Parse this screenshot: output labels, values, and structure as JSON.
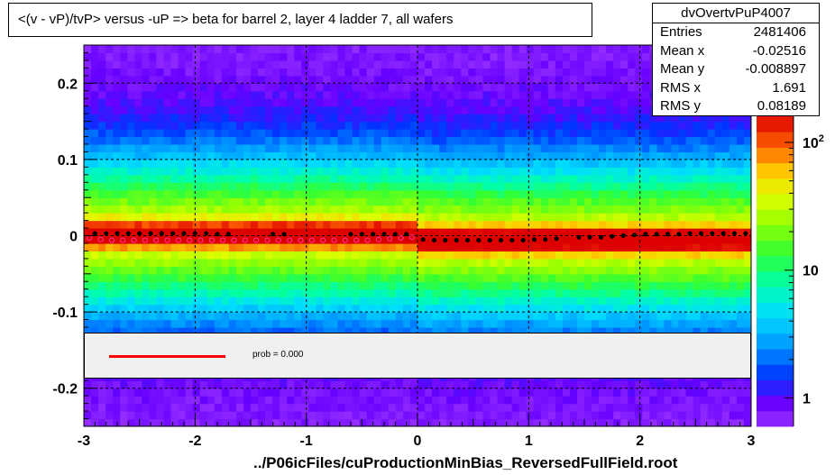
{
  "title": "<(v - vP)/tvP> versus  -uP => beta for barrel 2, layer 4 ladder 7, all wafers",
  "xlabel": "../P06icFiles/cuProductionMinBias_ReversedFullField.root",
  "stats": {
    "name": "dvOvertvPuP4007",
    "rows": [
      {
        "key": "Entries",
        "value": "2481406"
      },
      {
        "key": "Mean x",
        "value": "-0.02516"
      },
      {
        "key": "Mean y",
        "value": "-0.008897"
      },
      {
        "key": "RMS x",
        "value": "1.691"
      },
      {
        "key": "RMS y",
        "value": "0.08189"
      }
    ]
  },
  "fit_legend": {
    "label": "prob = 0.000",
    "line_color": "#ff0000"
  },
  "chart_data": {
    "type": "heatmap",
    "title": "<(v - vP)/tvP> versus  -uP => beta for barrel 2, layer 4 ladder 7, all wafers",
    "xlabel": "../P06icFiles/cuProductionMinBias_ReversedFullField.root",
    "ylabel": "",
    "xlim": [
      -3,
      3
    ],
    "ylim": [
      -0.25,
      0.25
    ],
    "x_ticks": [
      "-3",
      "-2",
      "-1",
      "0",
      "1",
      "2",
      "3"
    ],
    "y_ticks": [
      "0.2",
      "0.1",
      "0",
      "-0.1",
      "-0.2"
    ],
    "y_tick_values": [
      0.2,
      0.1,
      0,
      -0.1,
      -0.2
    ],
    "grid": true,
    "colorbar": {
      "labels": [
        {
          "text": "10",
          "sup": "2",
          "value": 100
        },
        {
          "text": "10",
          "sup": "",
          "value": 10
        },
        {
          "text": "1",
          "sup": "",
          "value": 1
        }
      ],
      "range": [
        0.6,
        160
      ]
    },
    "profile_series": {
      "name": "profile",
      "color": "#000000",
      "x": [
        -2.9,
        -2.8,
        -2.7,
        -2.6,
        -2.5,
        -2.4,
        -2.3,
        -2.2,
        -2.1,
        -2.0,
        -1.9,
        -1.8,
        -1.7,
        -1.3,
        -1.2,
        -0.6,
        -0.5,
        -0.4,
        -0.3,
        -0.2,
        -0.1,
        0.05,
        0.15,
        0.25,
        0.35,
        0.45,
        0.55,
        0.65,
        0.75,
        0.85,
        0.95,
        1.05,
        1.15,
        1.25,
        1.45,
        1.55,
        1.65,
        1.75,
        1.85,
        1.95,
        2.05,
        2.15,
        2.25,
        2.35,
        2.45,
        2.55,
        2.65,
        2.75,
        2.85,
        2.95
      ],
      "y": [
        0.003,
        0.003,
        0.003,
        0.003,
        0.003,
        0.003,
        0.003,
        0.003,
        0.003,
        0.003,
        0.003,
        0.002,
        0.002,
        0.002,
        0.002,
        0.002,
        0.002,
        0.002,
        0.002,
        0.002,
        0.002,
        -0.005,
        -0.006,
        -0.006,
        -0.006,
        -0.006,
        -0.006,
        -0.006,
        -0.006,
        -0.006,
        -0.006,
        -0.005,
        -0.005,
        -0.004,
        -0.002,
        -0.002,
        -0.002,
        -0.001,
        0.0,
        0.001,
        0.002,
        0.002,
        0.002,
        0.002,
        0.003,
        0.003,
        0.003,
        0.003,
        0.003,
        0.003
      ]
    },
    "fit_series": {
      "name": "fit",
      "color": "#ff3399",
      "x": [
        -2.95,
        -2.85,
        -2.75,
        -2.65,
        -2.55,
        -2.45,
        -2.35,
        -2.25,
        -2.15,
        -2.05,
        -1.95,
        -1.85,
        -1.75,
        -1.65,
        -1.55,
        -1.45,
        -1.35,
        -1.25,
        -1.15,
        -1.05,
        -0.95,
        -0.85,
        -0.75,
        -0.65,
        -0.55,
        -0.45,
        -0.35,
        -0.25,
        -0.15,
        -0.05
      ],
      "y": [
        -0.003,
        -0.005,
        -0.006,
        -0.006,
        -0.006,
        -0.006,
        -0.006,
        -0.006,
        -0.006,
        -0.006,
        -0.006,
        -0.006,
        -0.006,
        -0.006,
        -0.006,
        -0.006,
        -0.006,
        -0.006,
        -0.006,
        -0.006,
        -0.006,
        -0.006,
        -0.006,
        -0.006,
        -0.006,
        -0.006,
        -0.005,
        -0.004,
        -0.003,
        -0.002
      ]
    }
  }
}
